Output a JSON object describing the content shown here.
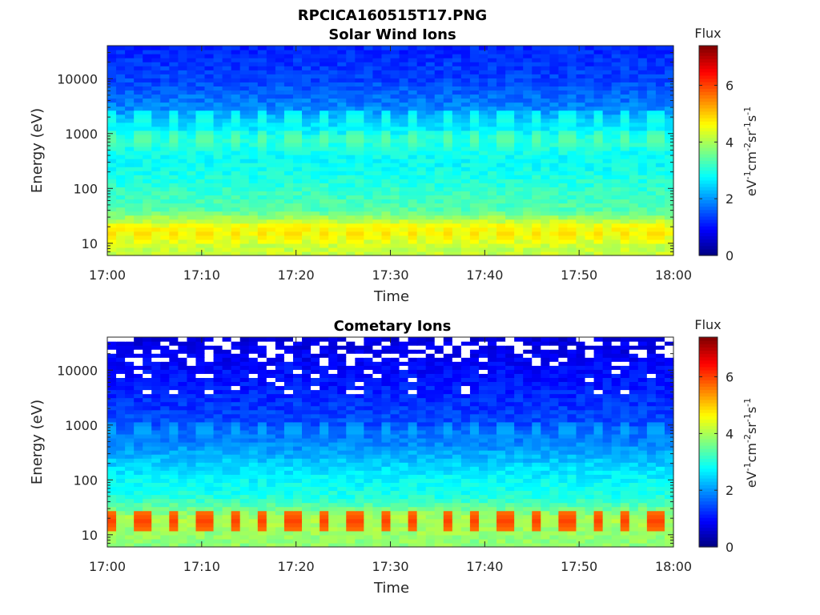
{
  "figure": {
    "title": "RPCICA160515T17.PNG"
  },
  "colorbar": {
    "label": "Flux",
    "unit_main": "eV",
    "unit_parts": [
      "eV",
      "-1",
      "cm",
      "-2",
      "sr",
      "-1",
      "s",
      "-1"
    ],
    "ticks": [
      "0",
      "2",
      "4",
      "6"
    ],
    "range": [
      0,
      7.4
    ],
    "colormap": "jet"
  },
  "chart_data": [
    {
      "type": "heatmap",
      "title": "Solar Wind Ions",
      "xlabel": "Time",
      "ylabel": "Energy (eV)",
      "xticks": [
        "17:00",
        "17:10",
        "17:20",
        "17:30",
        "17:40",
        "17:50",
        "18:00"
      ],
      "yticks": [
        "10",
        "100",
        "1000",
        "10000"
      ],
      "xlim": [
        "17:00",
        "18:00"
      ],
      "ylim": [
        6,
        40000
      ],
      "yscale": "log",
      "zlabel": "Flux",
      "zlim": [
        0,
        7.4
      ],
      "pulse_period_min": 3.2,
      "profile": [
        {
          "energy": 8,
          "flux": 4.2
        },
        {
          "energy": 20,
          "flux": 4.6
        },
        {
          "energy": 40,
          "flux": 3.4
        },
        {
          "energy": 100,
          "flux": 3.1
        },
        {
          "energy": 300,
          "flux": 2.8
        },
        {
          "energy": 800,
          "flux": 3.0
        },
        {
          "energy": 3000,
          "flux": 1.9
        },
        {
          "energy": 10000,
          "flux": 1.4
        },
        {
          "energy": 35000,
          "flux": 1.2
        }
      ],
      "peaks": [
        {
          "energy": 15,
          "flux": 4.9
        },
        {
          "energy": 800,
          "flux": 3.5
        },
        {
          "energy": 1800,
          "flux": 3.0
        }
      ],
      "gaps": false
    },
    {
      "type": "heatmap",
      "title": "Cometary Ions",
      "xlabel": "Time",
      "ylabel": "Energy (eV)",
      "xticks": [
        "17:00",
        "17:10",
        "17:20",
        "17:30",
        "17:40",
        "17:50",
        "18:00"
      ],
      "yticks": [
        "10",
        "100",
        "1000",
        "10000"
      ],
      "xlim": [
        "17:00",
        "18:00"
      ],
      "ylim": [
        6,
        40000
      ],
      "yscale": "log",
      "zlabel": "Flux",
      "zlim": [
        0,
        7.4
      ],
      "pulse_period_min": 3.2,
      "profile": [
        {
          "energy": 8,
          "flux": 3.8
        },
        {
          "energy": 20,
          "flux": 4.0
        },
        {
          "energy": 50,
          "flux": 3.0
        },
        {
          "energy": 150,
          "flux": 2.6
        },
        {
          "energy": 400,
          "flux": 2.0
        },
        {
          "energy": 1000,
          "flux": 1.5
        },
        {
          "energy": 5000,
          "flux": 1.1
        },
        {
          "energy": 15000,
          "flux": 0.9
        },
        {
          "energy": 35000,
          "flux": 0.7
        }
      ],
      "peaks": [
        {
          "energy": 18,
          "flux": 6.0
        },
        {
          "energy": 800,
          "flux": 2.2
        }
      ],
      "gaps": true
    }
  ]
}
